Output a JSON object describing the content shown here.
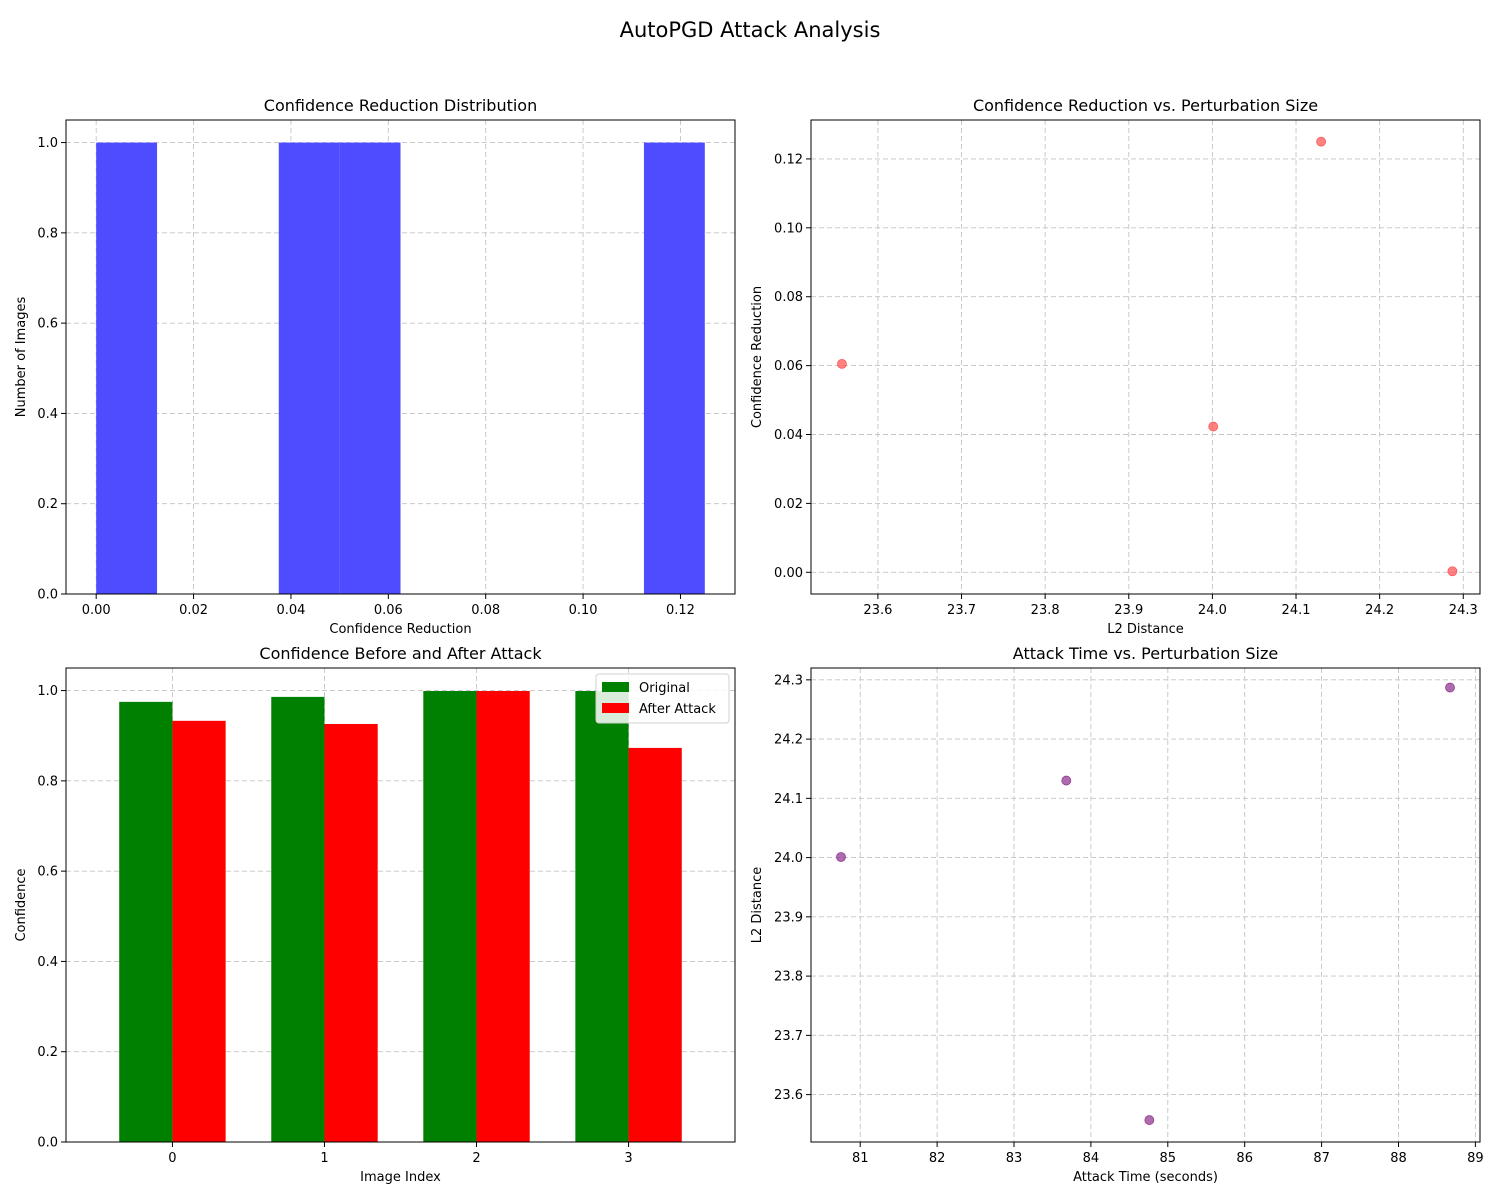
{
  "suptitle": "AutoPGD Attack Analysis",
  "chart_data": [
    {
      "type": "bar",
      "subtype": "histogram",
      "title": "Confidence Reduction Distribution",
      "xlabel": "Confidence Reduction",
      "ylabel": "Number of Images",
      "xlim": [
        -0.0062,
        0.1312
      ],
      "ylim": [
        0,
        1.05
      ],
      "xticks": [
        "0.00",
        "0.02",
        "0.04",
        "0.06",
        "0.08",
        "0.10",
        "0.12"
      ],
      "yticks": [
        "0.0",
        "0.2",
        "0.4",
        "0.6",
        "0.8",
        "1.0"
      ],
      "bins": [
        {
          "start": 0.0,
          "end": 0.0125,
          "count": 1
        },
        {
          "start": 0.0375,
          "end": 0.05,
          "count": 1
        },
        {
          "start": 0.05,
          "end": 0.0625,
          "count": 1
        },
        {
          "start": 0.1125,
          "end": 0.125,
          "count": 1
        }
      ],
      "color": "#4d4dff",
      "grid": true
    },
    {
      "type": "scatter",
      "title": "Confidence Reduction vs. Perturbation Size",
      "xlabel": "L2 Distance",
      "ylabel": "Confidence Reduction",
      "xlim": [
        23.52,
        24.32
      ],
      "ylim": [
        -0.0063,
        0.1313
      ],
      "xticks": [
        "23.6",
        "23.7",
        "23.8",
        "23.9",
        "24.0",
        "24.1",
        "24.2",
        "24.3"
      ],
      "yticks": [
        "0.00",
        "0.02",
        "0.04",
        "0.06",
        "0.08",
        "0.10",
        "0.12"
      ],
      "points": [
        {
          "x": 23.557,
          "y": 0.0605
        },
        {
          "x": 24.001,
          "y": 0.0423
        },
        {
          "x": 24.13,
          "y": 0.125
        },
        {
          "x": 24.287,
          "y": 0.0003
        }
      ],
      "color": "#ff4d4d",
      "grid": true
    },
    {
      "type": "bar",
      "title": "Confidence Before and After Attack",
      "xlabel": "Image Index",
      "ylabel": "Confidence",
      "categories": [
        "0",
        "1",
        "2",
        "3"
      ],
      "ylim": [
        0,
        1.05
      ],
      "yticks": [
        "0.0",
        "0.2",
        "0.4",
        "0.6",
        "0.8",
        "1.0"
      ],
      "series": [
        {
          "name": "Original",
          "values": [
            0.975,
            0.986,
            0.999,
            0.999
          ],
          "color": "#008000"
        },
        {
          "name": "After Attack",
          "values": [
            0.933,
            0.926,
            0.999,
            0.873
          ],
          "color": "#ff0000"
        }
      ],
      "legend": "top-right",
      "grid": true
    },
    {
      "type": "scatter",
      "title": "Attack Time vs. Perturbation Size",
      "xlabel": "Attack Time (seconds)",
      "ylabel": "L2 Distance",
      "xlim": [
        80.36,
        89.06
      ],
      "ylim": [
        23.52,
        24.32
      ],
      "xticks": [
        "81",
        "82",
        "83",
        "84",
        "85",
        "86",
        "87",
        "88",
        "89"
      ],
      "yticks": [
        "23.6",
        "23.7",
        "23.8",
        "23.9",
        "24.0",
        "24.1",
        "24.2",
        "24.3"
      ],
      "points": [
        {
          "x": 80.75,
          "y": 24.001
        },
        {
          "x": 83.68,
          "y": 24.13
        },
        {
          "x": 84.76,
          "y": 23.557
        },
        {
          "x": 88.67,
          "y": 24.287
        }
      ],
      "color": "#8b2d8b",
      "grid": true
    }
  ]
}
